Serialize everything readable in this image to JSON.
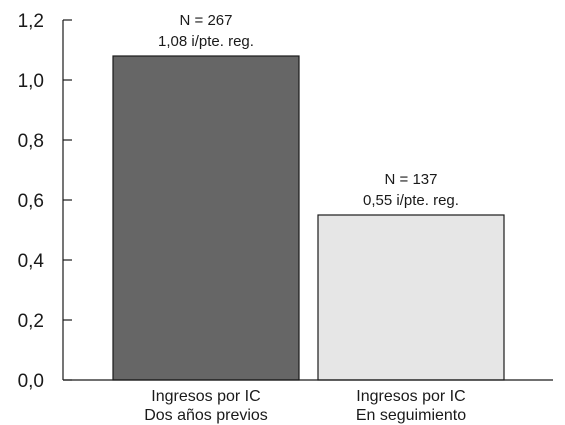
{
  "chart_data": {
    "type": "bar",
    "categories": [
      [
        "Ingresos por IC",
        "Dos años previos"
      ],
      [
        "Ingresos por IC",
        "En seguimiento"
      ]
    ],
    "values": [
      1.08,
      0.55
    ],
    "data_labels": [
      [
        "N = 267",
        "1,08 i/pte. reg."
      ],
      [
        "N = 137",
        "0,55 i/pte. reg."
      ]
    ],
    "bar_colors": [
      "#666666",
      "#e6e6e6"
    ],
    "ylim": [
      0,
      1.2
    ],
    "yticks": [
      0,
      0.2,
      0.4,
      0.6,
      0.8,
      1.0,
      1.2
    ],
    "ytick_labels": [
      "0,0",
      "0,2",
      "0,4",
      "0,6",
      "0,8",
      "1,0",
      "1,2"
    ],
    "title": "",
    "xlabel": "",
    "ylabel": "",
    "grid": false,
    "legend": "none"
  }
}
